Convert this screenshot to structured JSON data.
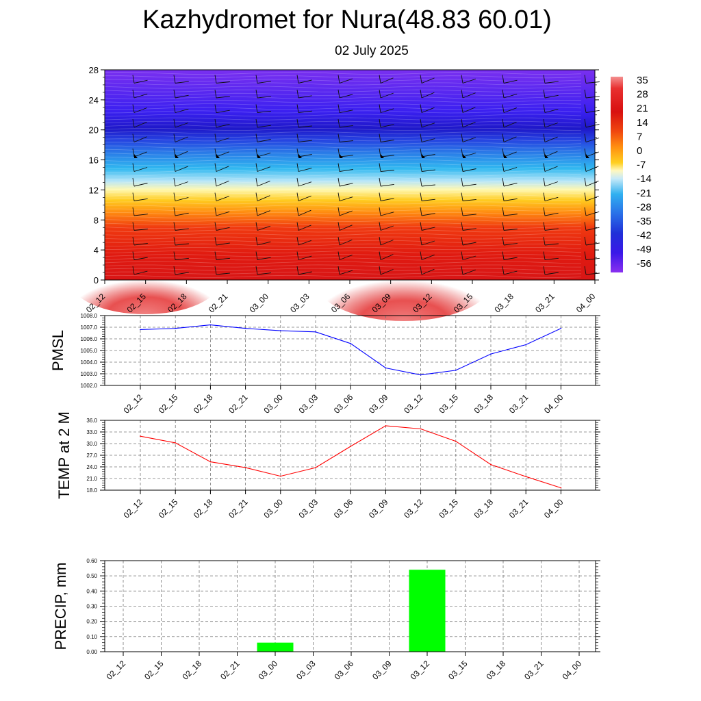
{
  "title": "Kazhydromet for Nura(48.83 60.01)",
  "subtitle": "02 July 2025",
  "time_labels": [
    "02_12",
    "02_15",
    "02_18",
    "02_21",
    "03_00",
    "03_03",
    "03_06",
    "03_09",
    "03_12",
    "03_15",
    "03_18",
    "03_21",
    "04_00"
  ],
  "chart_data": [
    {
      "type": "heatmap",
      "title": "",
      "x": [
        "02_12",
        "02_15",
        "02_18",
        "02_21",
        "03_00",
        "03_03",
        "03_06",
        "03_09",
        "03_12",
        "03_15",
        "03_18",
        "03_21",
        "04_00"
      ],
      "y_ticks": [
        0,
        4,
        8,
        12,
        16,
        20,
        24,
        28
      ],
      "ylim": [
        0,
        28
      ],
      "colorbar_labels": [
        "35",
        "28",
        "21",
        "14",
        "7",
        "0",
        "-7",
        "-14",
        "-21",
        "-28",
        "-35",
        "-42",
        "-49",
        "-56"
      ],
      "wind_barbs": true
    },
    {
      "type": "line",
      "ylabel": "PMSL",
      "x": [
        "02_12",
        "02_15",
        "02_18",
        "02_21",
        "03_00",
        "03_03",
        "03_06",
        "03_09",
        "03_12",
        "03_15",
        "03_18",
        "03_21",
        "04_00"
      ],
      "values": [
        1006.8,
        1006.9,
        1007.2,
        1006.9,
        1006.7,
        1006.6,
        1005.6,
        1003.5,
        1002.9,
        1003.3,
        1004.7,
        1005.5,
        1006.9
      ],
      "ylim": [
        1002.0,
        1008.0
      ],
      "y_ticks": [
        "1002.0",
        "1003.0",
        "1004.0",
        "1005.0",
        "1006.0",
        "1007.0",
        "1008.0"
      ],
      "color": "#0000ff",
      "grid": true
    },
    {
      "type": "line",
      "ylabel": "TEMP at 2 M",
      "x": [
        "02_12",
        "02_15",
        "02_18",
        "02_21",
        "03_00",
        "03_03",
        "03_06",
        "03_09",
        "03_12",
        "03_15",
        "03_18",
        "03_21",
        "04_00"
      ],
      "values": [
        31.9,
        30.2,
        25.3,
        23.8,
        21.6,
        23.8,
        29.3,
        34.6,
        33.8,
        30.6,
        24.6,
        21.5,
        18.6
      ],
      "ylim": [
        18.0,
        36.0
      ],
      "y_ticks": [
        "18.0",
        "21.0",
        "24.0",
        "27.0",
        "30.0",
        "33.0",
        "36.0"
      ],
      "color": "#ff0000",
      "grid": true
    },
    {
      "type": "bar",
      "ylabel": "PRECIP, mm",
      "categories": [
        "02_12",
        "02_15",
        "02_18",
        "02_21",
        "03_00",
        "03_03",
        "03_06",
        "03_09",
        "03_12",
        "03_15",
        "03_18",
        "03_21",
        "04_00"
      ],
      "values": [
        0,
        0,
        0,
        0,
        0.06,
        0,
        0,
        0,
        0.54,
        0,
        0,
        0,
        0
      ],
      "ylim": [
        0,
        0.6
      ],
      "y_ticks": [
        "0.00",
        "0.10",
        "0.20",
        "0.30",
        "0.40",
        "0.50",
        "0.60"
      ],
      "color": "#00ff00",
      "grid": true
    }
  ]
}
